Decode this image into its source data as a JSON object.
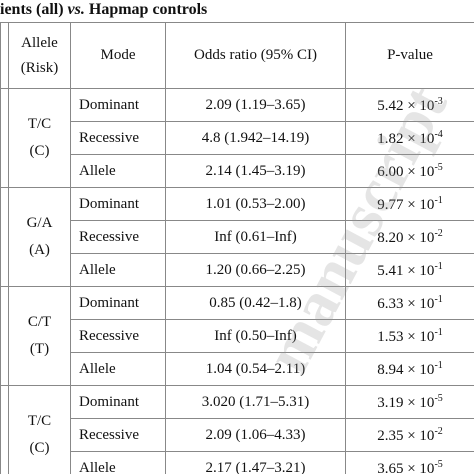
{
  "title": {
    "before": "ients (all) ",
    "italic": "vs.",
    "after": " Hapmap controls"
  },
  "header": {
    "allele": "Allele",
    "risk": "(Risk)",
    "mode": "Mode",
    "or": "Odds ratio (95% CI)",
    "p": "P-value"
  },
  "groups": [
    {
      "allele": "T/C",
      "risk": "(C)",
      "rows": [
        {
          "mode": "Dominant",
          "or": "2.09 (1.19–3.65)",
          "p": "5.42 × 10",
          "exp": "-3"
        },
        {
          "mode": "Recessive",
          "or": "4.8 (1.942–14.19)",
          "p": "1.82 × 10",
          "exp": "-4"
        },
        {
          "mode": "Allele",
          "or": "2.14 (1.45–3.19)",
          "p": "6.00 × 10",
          "exp": "-5"
        }
      ]
    },
    {
      "allele": "G/A",
      "risk": "(A)",
      "rows": [
        {
          "mode": "Dominant",
          "or": "1.01 (0.53–2.00)",
          "p": "9.77 × 10",
          "exp": "-1"
        },
        {
          "mode": "Recessive",
          "or": "Inf (0.61–Inf)",
          "p": "8.20 × 10",
          "exp": "-2"
        },
        {
          "mode": "Allele",
          "or": "1.20 (0.66–2.25)",
          "p": "5.41 × 10",
          "exp": "-1"
        }
      ]
    },
    {
      "allele": "C/T",
      "risk": "(T)",
      "rows": [
        {
          "mode": "Dominant",
          "or": "0.85 (0.42–1.8)",
          "p": "6.33 × 10",
          "exp": "-1"
        },
        {
          "mode": "Recessive",
          "or": "Inf (0.50–Inf)",
          "p": "1.53 × 10",
          "exp": "-1"
        },
        {
          "mode": "Allele",
          "or": "1.04 (0.54–2.11)",
          "p": "8.94 × 10",
          "exp": "-1"
        }
      ]
    },
    {
      "allele": "T/C",
      "risk": "(C)",
      "rows": [
        {
          "mode": "Dominant",
          "or": "3.020 (1.71–5.31)",
          "p": "3.19 × 10",
          "exp": "-5"
        },
        {
          "mode": "Recessive",
          "or": "2.09 (1.06–4.33)",
          "p": "2.35 × 10",
          "exp": "-2"
        },
        {
          "mode": "Allele",
          "or": "2.17 (1.47–3.21)",
          "p": "3.65 × 10",
          "exp": "-5"
        }
      ]
    }
  ],
  "watermark": "manuscript"
}
